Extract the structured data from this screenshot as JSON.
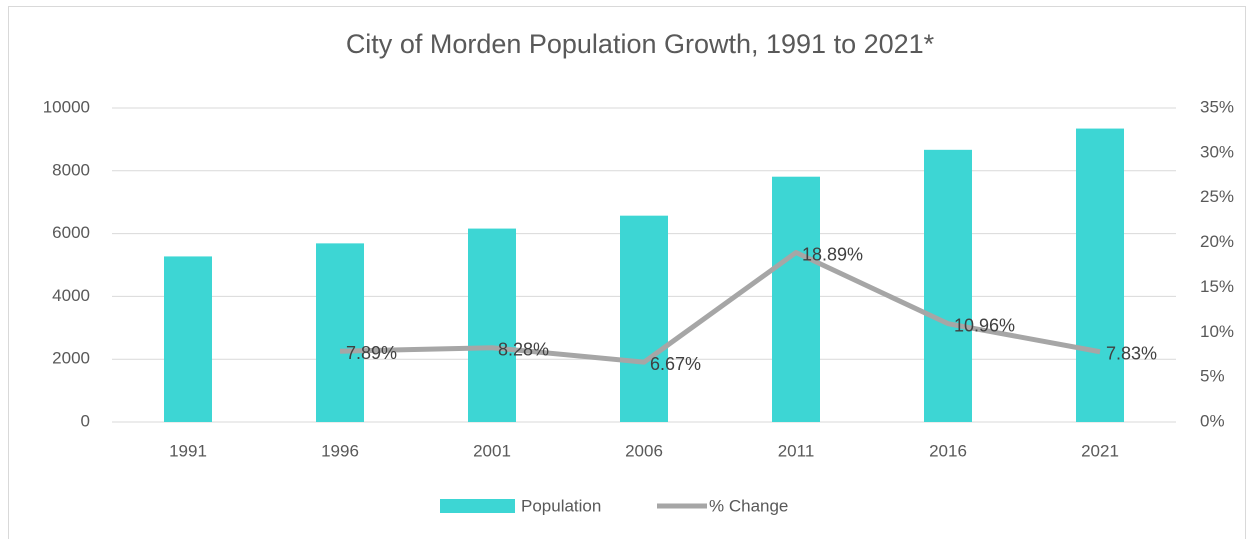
{
  "chart_data": {
    "type": "bar",
    "title": "City of Morden Population Growth, 1991 to 2021*",
    "categories": [
      "1991",
      "1996",
      "2001",
      "2006",
      "2011",
      "2016",
      "2021"
    ],
    "series": [
      {
        "name": "Population",
        "type": "bar",
        "color": "#3dd6d4",
        "values": [
          5273,
          5689,
          6160,
          6571,
          7812,
          8668,
          9345
        ]
      },
      {
        "name": "% Change",
        "type": "line",
        "axis": "y2",
        "color": "#a6a6a6",
        "values": [
          null,
          7.89,
          8.28,
          6.67,
          18.89,
          10.96,
          7.83
        ],
        "value_labels": [
          null,
          "7.89%",
          "8.28%",
          "6.67%",
          "18.89%",
          "10.96%",
          "7.83%"
        ]
      }
    ],
    "ylim": [
      0,
      10000
    ],
    "yticks": [
      0,
      2000,
      4000,
      6000,
      8000,
      10000
    ],
    "y2lim": [
      0,
      35
    ],
    "y2ticks": [
      {
        "value": 0,
        "label": "0%"
      },
      {
        "value": 5,
        "label": "5%"
      },
      {
        "value": 10,
        "label": "10%"
      },
      {
        "value": 15,
        "label": "15%"
      },
      {
        "value": 20,
        "label": "20%"
      },
      {
        "value": 25,
        "label": "25%"
      },
      {
        "value": 30,
        "label": "30%"
      },
      {
        "value": 35,
        "label": "35%"
      }
    ],
    "grid": true,
    "legend": "bottom"
  }
}
